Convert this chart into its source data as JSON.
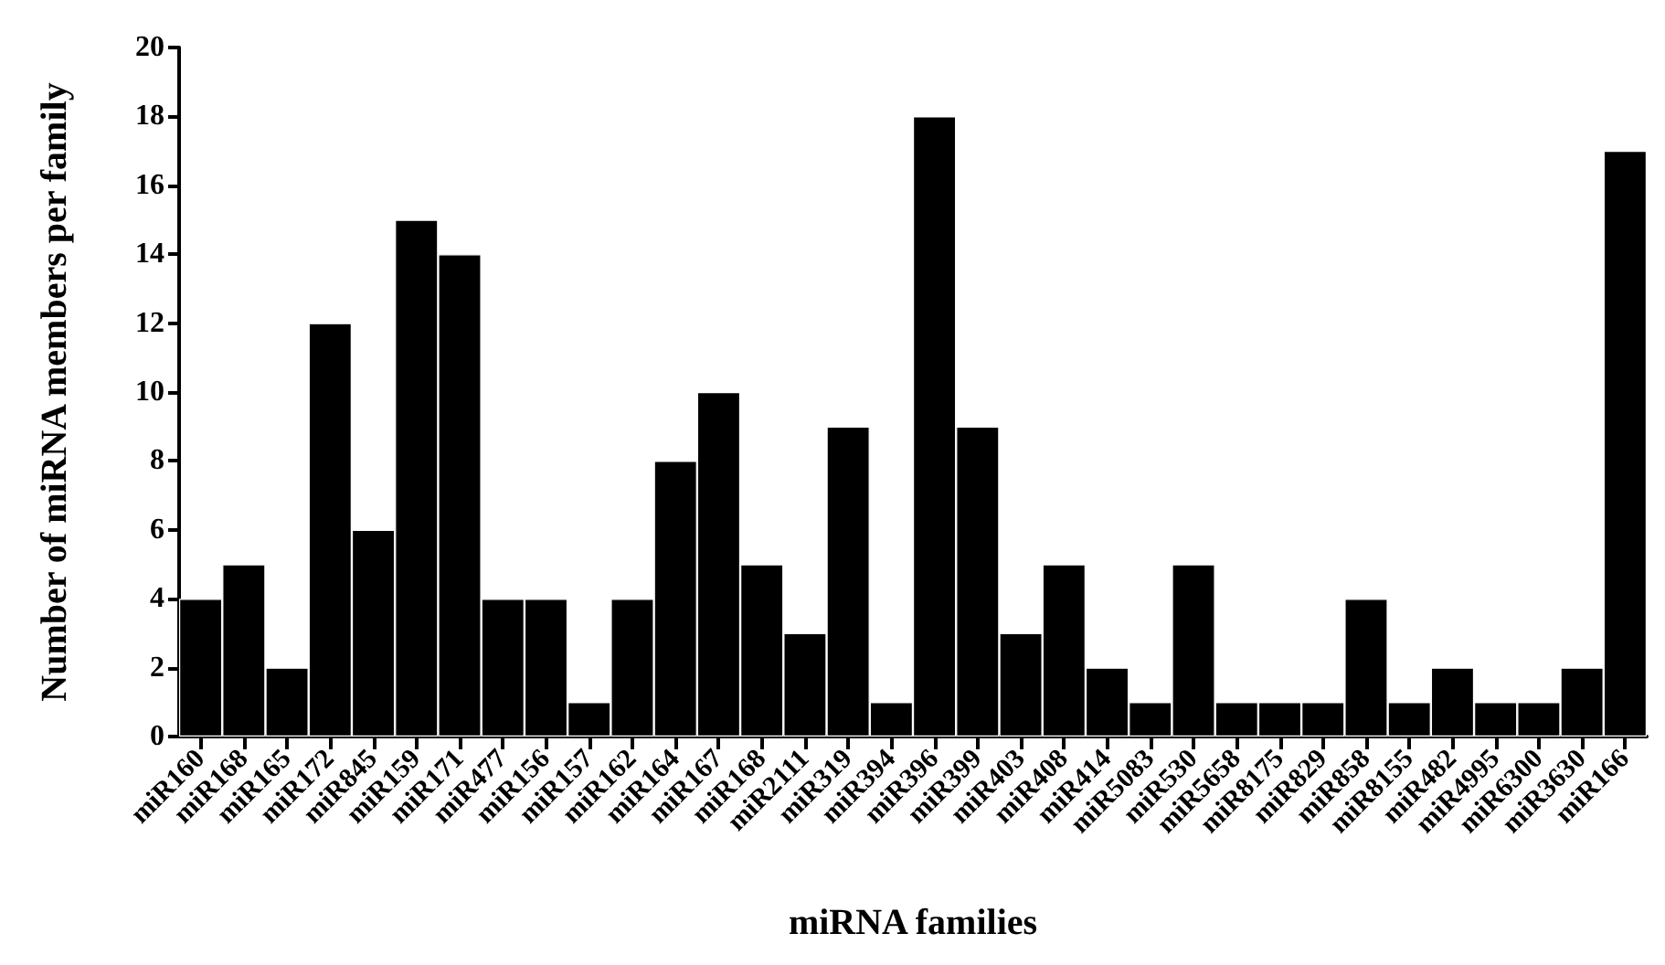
{
  "chart_data": {
    "type": "bar",
    "xlabel": "miRNA families",
    "ylabel": "Number of miRNA members per family",
    "categories": [
      "miR160",
      "miR168",
      "miR165",
      "miR172",
      "miR845",
      "miR159",
      "miR171",
      "miR477",
      "miR156",
      "miR157",
      "miR162",
      "miR164",
      "miR167",
      "miR168",
      "miR2111",
      "miR319",
      "miR394",
      "miR396",
      "miR399",
      "miR403",
      "miR408",
      "miR414",
      "miR5083",
      "miR530",
      "miR5658",
      "miR8175",
      "miR829",
      "miR858",
      "miR8155",
      "miR482",
      "miR4995",
      "miR6300",
      "miR3630",
      "miR166"
    ],
    "values": [
      4,
      5,
      2,
      12,
      6,
      15,
      14,
      4,
      4,
      1,
      4,
      8,
      10,
      5,
      3,
      9,
      1,
      18,
      9,
      3,
      5,
      2,
      1,
      5,
      1,
      1,
      1,
      4,
      1,
      2,
      1,
      1,
      2,
      17
    ],
    "color": "#000000",
    "ylim": [
      0,
      20
    ],
    "yticks": [
      0,
      2,
      4,
      6,
      8,
      10,
      12,
      14,
      16,
      18,
      20
    ],
    "grid": false
  }
}
